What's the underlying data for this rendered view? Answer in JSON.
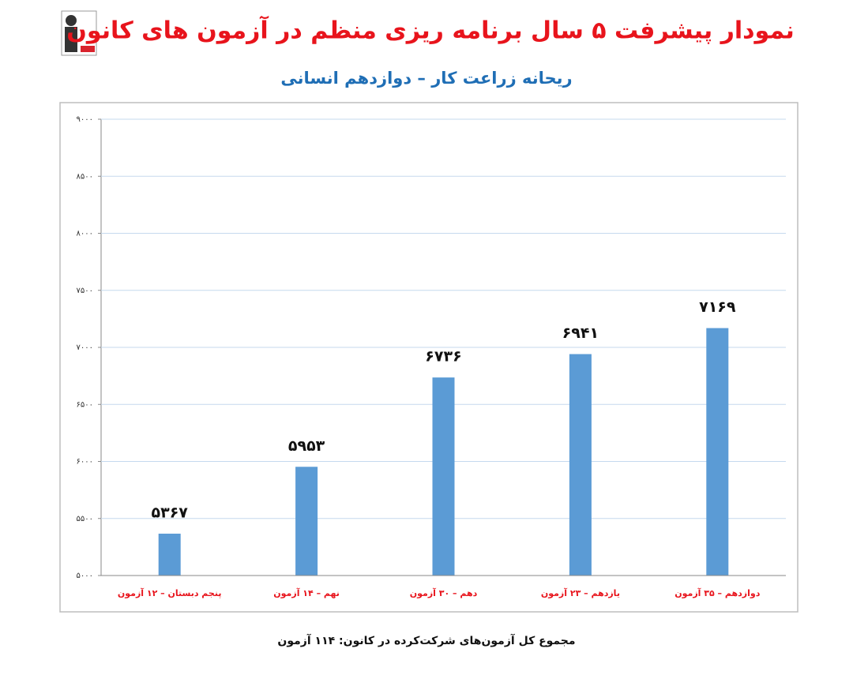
{
  "chart_data": {
    "type": "bar",
    "title": "نمودار پیشرفت ۵ سال برنامه ریزی منظم در آزمون های کانون",
    "subtitle": "ریحانه زراعت کار – دوازدهم انسانی",
    "categories": [
      "پنجم دبستان – ۱۲ آزمون",
      "نهم – ۱۴ آزمون",
      "دهم – ۳۰ آزمون",
      "یازدهم – ۲۳ آزمون",
      "دوازدهم – ۳۵ آزمون"
    ],
    "values": [
      5367,
      5953,
      6736,
      6941,
      7169
    ],
    "value_labels": [
      "۵۳۶۷",
      "۵۹۵۳",
      "۶۷۳۶",
      "۶۹۴۱",
      "۷۱۶۹"
    ],
    "color": "#5b9bd5",
    "ylim": [
      5000,
      9000
    ],
    "yticks": [
      {
        "value": 5000,
        "label": "۵۰۰۰"
      },
      {
        "value": 5500,
        "label": "۵۵۰۰"
      },
      {
        "value": 6000,
        "label": "۶۰۰۰"
      },
      {
        "value": 6500,
        "label": "۶۵۰۰"
      },
      {
        "value": 7000,
        "label": "۷۰۰۰"
      },
      {
        "value": 7500,
        "label": "۷۵۰۰"
      },
      {
        "value": 8000,
        "label": "۸۰۰۰"
      },
      {
        "value": 8500,
        "label": "۸۵۰۰"
      },
      {
        "value": 9000,
        "label": "۹۰۰۰"
      }
    ],
    "grid": true,
    "note": "مجموع کل آزمون‌های شرکت‌کرده در کانون:  ۱۱۴ آزمون"
  }
}
